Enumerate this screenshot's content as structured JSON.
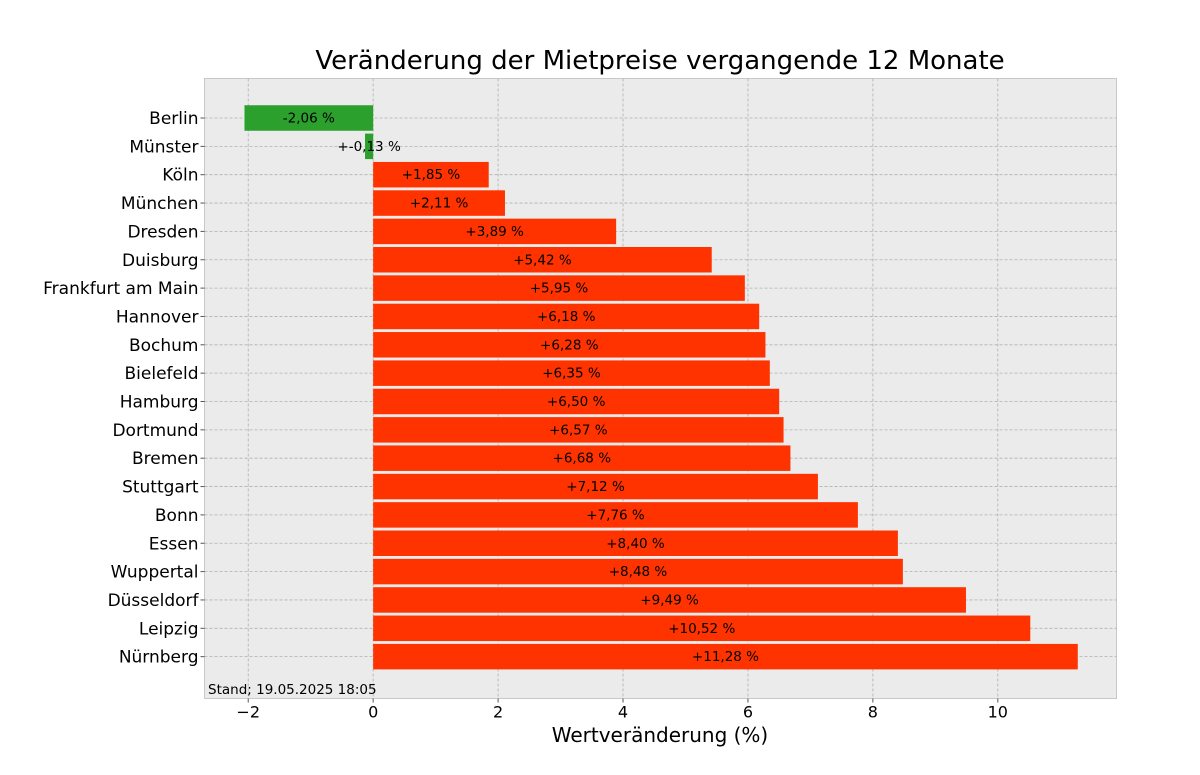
{
  "chart_data": {
    "type": "bar",
    "orientation": "horizontal",
    "title": "Veränderung der Mietpreise vergangende 12 Monate",
    "xlabel": "Wertveränderung (%)",
    "ylabel": "",
    "xlim": [
      -2.7,
      11.9
    ],
    "xticks": [
      -2,
      0,
      2,
      4,
      6,
      8,
      10
    ],
    "xtick_labels": [
      "−2",
      "0",
      "2",
      "4",
      "6",
      "8",
      "10"
    ],
    "grid": true,
    "note": "Stand; 19.05.2025 18:05",
    "colors": {
      "positive": "#ff3300",
      "negative": "#2ca02c",
      "background": "#ebebeb"
    },
    "categories": [
      "Berlin",
      "Münster",
      "Köln",
      "München",
      "Dresden",
      "Duisburg",
      "Frankfurt am Main",
      "Hannover",
      "Bochum",
      "Bielefeld",
      "Hamburg",
      "Dortmund",
      "Bremen",
      "Stuttgart",
      "Bonn",
      "Essen",
      "Wuppertal",
      "Düsseldorf",
      "Leipzig",
      "Nürnberg"
    ],
    "values": [
      -2.06,
      -0.13,
      1.85,
      2.11,
      3.89,
      5.42,
      5.95,
      6.18,
      6.28,
      6.35,
      6.5,
      6.57,
      6.68,
      7.12,
      7.76,
      8.4,
      8.48,
      9.49,
      10.52,
      11.28
    ],
    "data_labels": [
      "-2,06 %",
      "+-0,13 %",
      "+1,85 %",
      "+2,11 %",
      "+3,89 %",
      "+5,42 %",
      "+5,95 %",
      "+6,18 %",
      "+6,28 %",
      "+6,35 %",
      "+6,50 %",
      "+6,57 %",
      "+6,68 %",
      "+7,12 %",
      "+7,76 %",
      "+8,40 %",
      "+8,48 %",
      "+9,49 %",
      "+10,52 %",
      "+11,28 %"
    ]
  }
}
